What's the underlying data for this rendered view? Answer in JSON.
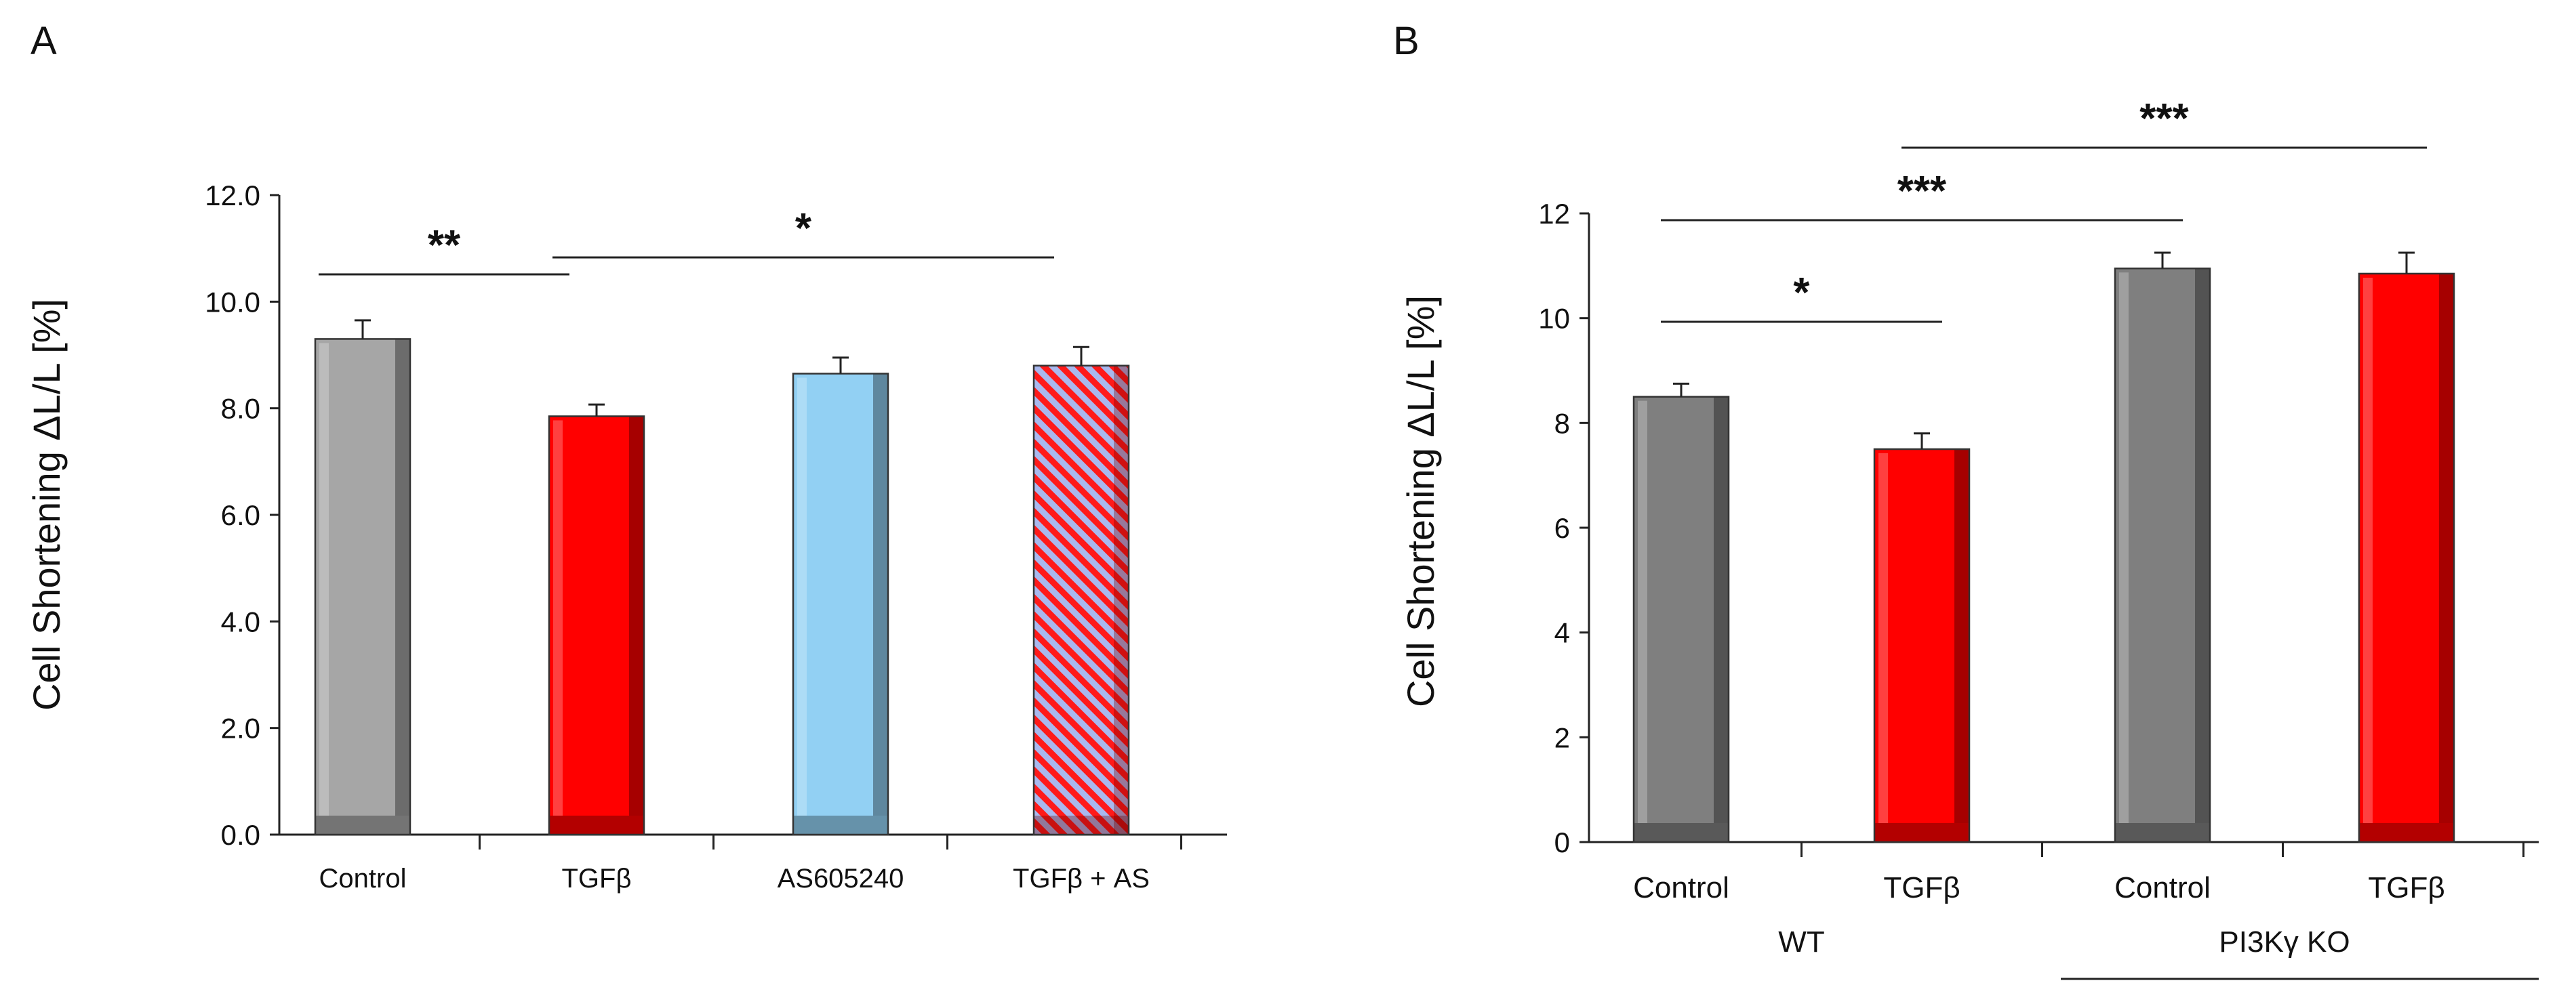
{
  "figure": {
    "panels": [
      {
        "letter": "A"
      },
      {
        "letter": "B"
      }
    ]
  },
  "chart_data": [
    {
      "type": "bar",
      "panel": "A",
      "title": "",
      "xlabel": "",
      "ylabel": "Cell Shortening ΔL/L  [%]",
      "categories": [
        "Control",
        "TGFβ",
        "AS605240",
        "TGFβ + AS"
      ],
      "values": [
        9.3,
        7.85,
        8.65,
        8.8
      ],
      "errors": [
        0.35,
        0.22,
        0.3,
        0.35
      ],
      "fills": [
        "#a6a6a6",
        "#ff0000",
        "#92d0f3",
        "hatch-red-blue"
      ],
      "ylim": [
        0,
        12
      ],
      "yticks": [
        0,
        2,
        4,
        6,
        8,
        10,
        12
      ],
      "ytick_labels": [
        "0.0",
        "2.0",
        "4.0",
        "6.0",
        "8.0",
        "10.0",
        "12.0"
      ],
      "grid": false,
      "significance": [
        {
          "from": 0,
          "to": 1,
          "label": "**"
        },
        {
          "from": 1,
          "to": 3,
          "label": "*"
        }
      ]
    },
    {
      "type": "bar",
      "panel": "B",
      "title": "",
      "xlabel": "",
      "ylabel": "Cell Shortening  ΔL/L [%]",
      "categories": [
        "Control",
        "TGFβ",
        "Control",
        "TGFβ"
      ],
      "groups": [
        {
          "label": "WT",
          "indices": [
            0,
            1
          ]
        },
        {
          "label": "PI3Kγ KO",
          "indices": [
            2,
            3
          ]
        }
      ],
      "values": [
        8.5,
        7.5,
        10.95,
        10.85
      ],
      "errors": [
        0.25,
        0.3,
        0.3,
        0.4
      ],
      "fills": [
        "#7f7f7f",
        "#ff0000",
        "#7f7f7f",
        "#ff0000"
      ],
      "ylim": [
        0,
        12
      ],
      "yticks": [
        0,
        2,
        4,
        6,
        8,
        10,
        12
      ],
      "ytick_labels": [
        "0",
        "2",
        "4",
        "6",
        "8",
        "10",
        "12"
      ],
      "grid": false,
      "significance": [
        {
          "from": 0,
          "to": 1,
          "label": "*"
        },
        {
          "from": 0,
          "to": 2,
          "label": "***"
        },
        {
          "from": 1,
          "to": 3,
          "label": "***"
        }
      ]
    }
  ]
}
